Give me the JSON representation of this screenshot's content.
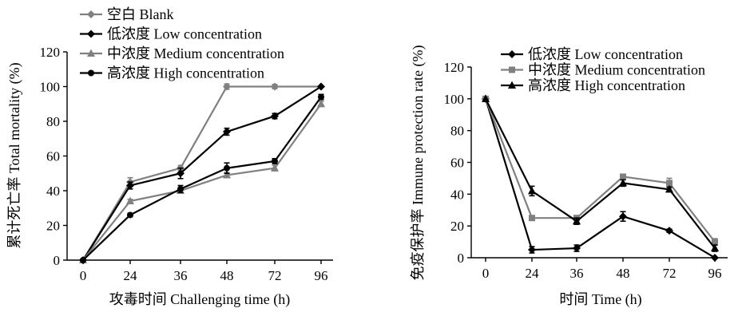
{
  "colors": {
    "black": "#000000",
    "gray": "#808080"
  },
  "chart_data": [
    {
      "type": "line",
      "xlabel": "攻毒时间 Challenging time (h)",
      "ylabel": "累计死亡率 Total mortality (%)",
      "categories": [
        "0",
        "24",
        "36",
        "48",
        "72",
        "96"
      ],
      "ylim": [
        0,
        120
      ],
      "yticks": [
        0,
        20,
        40,
        60,
        80,
        100,
        120
      ],
      "legend_position": "top-left",
      "series": [
        {
          "name": "空白 Blank",
          "color": "#808080",
          "marker": "diamond",
          "values": [
            0,
            45,
            53,
            100,
            100,
            100
          ],
          "errors": [
            0,
            2.5,
            1.5,
            1.5,
            1.2,
            0
          ]
        },
        {
          "name": "低浓度 Low concentration",
          "color": "#000000",
          "marker": "diamond",
          "values": [
            0,
            43,
            50,
            74,
            83,
            100
          ],
          "errors": [
            0,
            2,
            3,
            2,
            1.5,
            0
          ]
        },
        {
          "name": "中浓度 Medium concentration",
          "color": "#808080",
          "marker": "triangle",
          "values": [
            0,
            34,
            40,
            49,
            53,
            90
          ],
          "errors": [
            0,
            1,
            1.5,
            1.5,
            1.5,
            1.5
          ]
        },
        {
          "name": "高浓度 High concentration",
          "color": "#000000",
          "marker": "circle",
          "values": [
            0,
            26,
            41,
            53,
            57,
            94
          ],
          "errors": [
            0,
            1,
            2,
            3,
            1.5,
            1.5
          ]
        }
      ]
    },
    {
      "type": "line",
      "xlabel": "时间 Time (h)",
      "ylabel": "免疫保护率 Immune protection rate (%)",
      "categories": [
        "0",
        "24",
        "36",
        "48",
        "72",
        "96"
      ],
      "ylim": [
        0,
        120
      ],
      "yticks": [
        0,
        20,
        40,
        60,
        80,
        100,
        120
      ],
      "legend_position": "top-right",
      "series": [
        {
          "name": "低浓度 Low concentration",
          "color": "#000000",
          "marker": "diamond",
          "values": [
            100,
            5,
            6,
            26,
            17,
            0
          ],
          "errors": [
            0,
            2,
            2,
            3,
            1,
            0
          ]
        },
        {
          "name": "中浓度 Medium concentration",
          "color": "#808080",
          "marker": "square",
          "values": [
            100,
            25,
            25,
            51,
            47,
            10
          ],
          "errors": [
            0,
            1,
            1.5,
            1.5,
            3,
            2
          ]
        },
        {
          "name": "高浓度 High concentration",
          "color": "#000000",
          "marker": "triangle",
          "values": [
            100,
            42,
            23,
            47,
            43,
            6
          ],
          "errors": [
            0,
            3,
            2,
            2,
            1.5,
            2
          ]
        }
      ]
    }
  ]
}
